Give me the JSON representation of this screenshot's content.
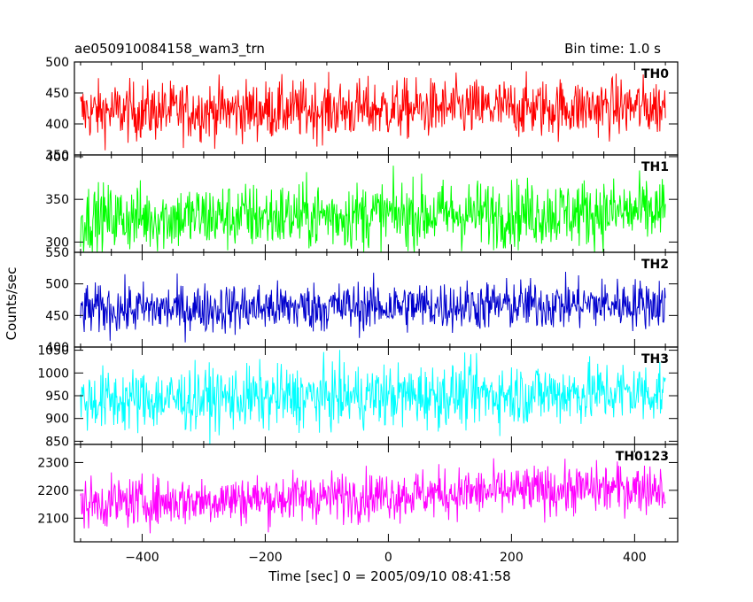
{
  "header": {
    "title": "ae050910084158_wam3_trn",
    "bin_time": "Bin time: 1.0 s"
  },
  "chart_data": {
    "type": "line",
    "xlabel": "Time [sec] 0 = 2005/09/10 08:41:58",
    "ylabel": "Counts/sec",
    "xlim": [
      -510,
      470
    ],
    "x_range": [
      -500,
      450
    ],
    "x_ticks": [
      -400,
      -200,
      0,
      200,
      400
    ],
    "grid": false,
    "panels": [
      {
        "name": "TH0",
        "color": "#ff0000",
        "ylim": [
          350,
          500
        ],
        "y_ticks": [
          350,
          400,
          450,
          500
        ],
        "mean": 422,
        "amplitude": 24,
        "trend": 8
      },
      {
        "name": "TH1",
        "color": "#00ff00",
        "ylim": [
          288,
          402
        ],
        "y_ticks": [
          300,
          350,
          400
        ],
        "mean": 330,
        "amplitude": 20,
        "trend": 8
      },
      {
        "name": "TH2",
        "color": "#0000cd",
        "ylim": [
          400,
          550
        ],
        "y_ticks": [
          400,
          450,
          500,
          550
        ],
        "mean": 462,
        "amplitude": 20,
        "trend": 10
      },
      {
        "name": "TH3",
        "color": "#00ffff",
        "ylim": [
          843,
          1057
        ],
        "y_ticks": [
          850,
          900,
          950,
          1000,
          1050
        ],
        "mean": 945,
        "amplitude": 35,
        "trend": 20
      },
      {
        "name": "TH0123",
        "color": "#ff00ff",
        "ylim": [
          2015,
          2365
        ],
        "y_ticks": [
          2100,
          2200,
          2300
        ],
        "mean": 2170,
        "amplitude": 45,
        "trend": 60
      }
    ]
  }
}
